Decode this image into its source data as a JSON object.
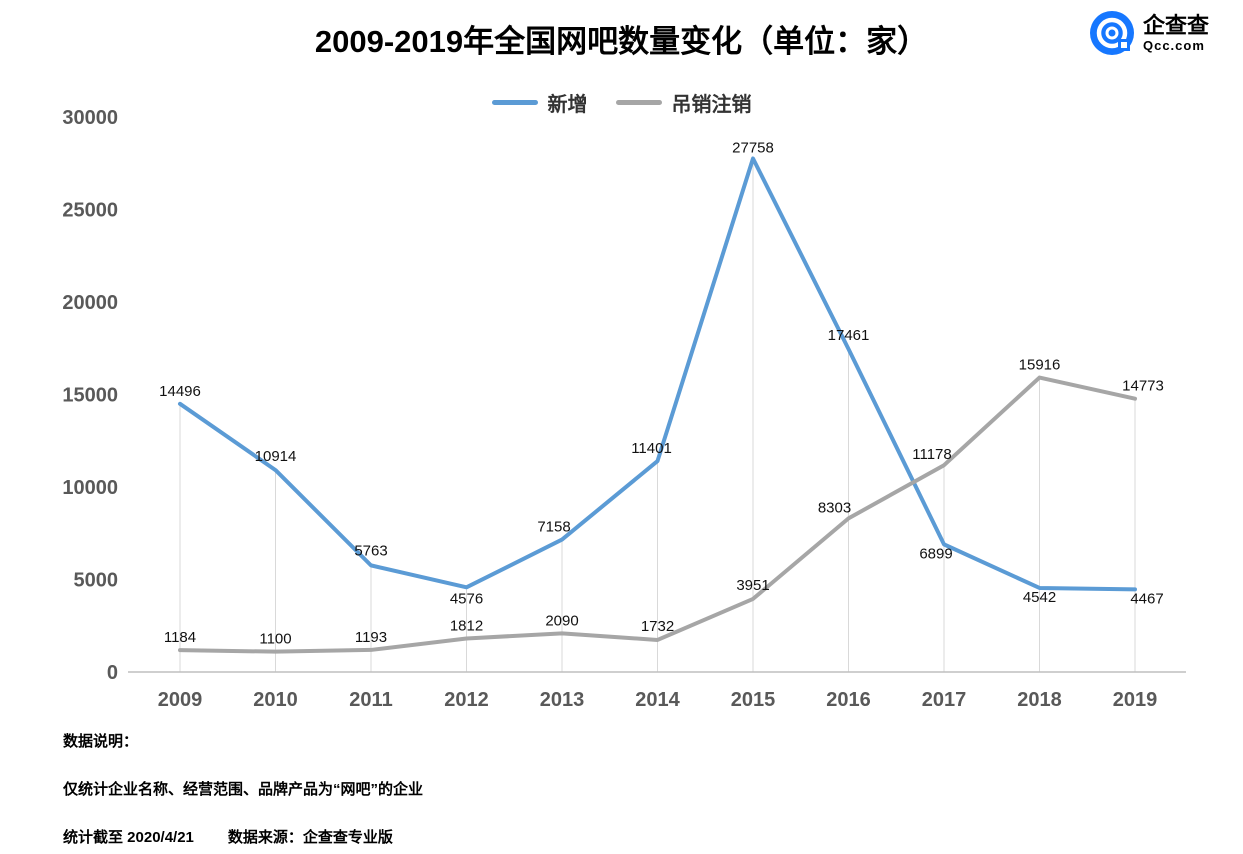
{
  "title": "2009-2019年全国网吧数量变化（单位：家）",
  "logo": {
    "name": "企查查",
    "domain": "Qcc.com",
    "color": "#1677ff"
  },
  "footer": {
    "line1": "数据说明：",
    "line2": "仅统计企业名称、经营范围、品牌产品为“网吧”的企业",
    "line3a": "统计截至 2020/4/21",
    "line3b": "数据来源：企查查专业版"
  },
  "chart_data": {
    "type": "line",
    "title": "2009-2019年全国网吧数量变化（单位：家）",
    "categories": [
      "2009",
      "2010",
      "2011",
      "2012",
      "2013",
      "2014",
      "2015",
      "2016",
      "2017",
      "2018",
      "2019"
    ],
    "series": [
      {
        "name": "新增",
        "color": "#5B9BD5",
        "values": [
          14496,
          10914,
          5763,
          4576,
          7158,
          11401,
          27758,
          17461,
          6899,
          4542,
          4467
        ]
      },
      {
        "name": "吊销注销",
        "color": "#A6A6A6",
        "values": [
          1184,
          1100,
          1193,
          1812,
          2090,
          1732,
          3951,
          8303,
          11178,
          15916,
          14773
        ]
      }
    ],
    "xlabel": "",
    "ylabel": "",
    "ylim": [
      0,
      30000
    ],
    "yticks": [
      0,
      5000,
      10000,
      15000,
      20000,
      25000,
      30000
    ],
    "grid": "vertical-droplines",
    "legend_position": "top"
  }
}
